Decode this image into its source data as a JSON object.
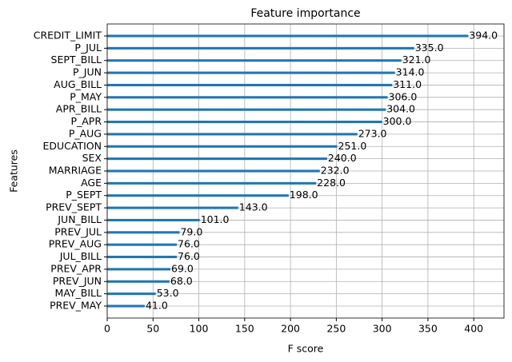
{
  "chart_data": {
    "type": "barh",
    "title": "Feature importance",
    "x_label": "F score",
    "y_label": "Features",
    "categories": [
      "CREDIT_LIMIT",
      "P_JUL",
      "SEPT_BILL",
      "P_JUN",
      "AUG_BILL",
      "P_MAY",
      "APR_BILL",
      "P_APR",
      "P_AUG",
      "EDUCATION",
      "SEX",
      "MARRIAGE",
      "AGE",
      "P_SEPT",
      "PREV_SEPT",
      "JUN_BILL",
      "PREV_JUL",
      "PREV_AUG",
      "JUL_BILL",
      "PREV_APR",
      "PREV_JUN",
      "MAY_BILL",
      "PREV_MAY"
    ],
    "values": [
      394,
      335,
      321,
      314,
      311,
      306,
      304,
      300,
      273,
      251,
      240,
      232,
      228,
      198,
      143,
      101,
      79,
      76,
      76,
      69,
      68,
      53,
      41
    ],
    "value_labels": [
      "394.0",
      "335.0",
      "321.0",
      "314.0",
      "311.0",
      "306.0",
      "304.0",
      "300.0",
      "273.0",
      "251.0",
      "240.0",
      "232.0",
      "228.0",
      "198.0",
      "143.0",
      "101.0",
      "79.0",
      "76.0",
      "76.0",
      "69.0",
      "68.0",
      "53.0",
      "41.0"
    ],
    "color": "#1f77b4",
    "xlim": [
      0,
      433
    ],
    "xticks": [
      0,
      50,
      100,
      150,
      200,
      250,
      300,
      350,
      400
    ],
    "grid": true
  }
}
